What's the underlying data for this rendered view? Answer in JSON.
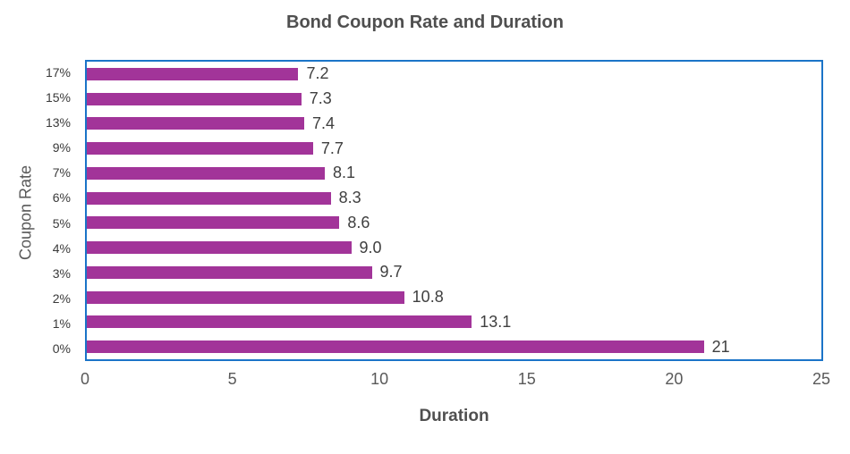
{
  "chart_data": {
    "type": "bar",
    "orientation": "horizontal",
    "title": "Bond Coupon Rate and Duration",
    "xlabel": "Duration",
    "ylabel": "Coupon Rate",
    "categories": [
      "17%",
      "15%",
      "13%",
      "9%",
      "7%",
      "6%",
      "5%",
      "4%",
      "3%",
      "2%",
      "1%",
      "0%"
    ],
    "values": [
      7.2,
      7.3,
      7.4,
      7.7,
      8.1,
      8.3,
      8.6,
      9.0,
      9.7,
      10.8,
      13.1,
      21
    ],
    "value_labels": [
      "7.2",
      "7.3",
      "7.4",
      "7.7",
      "8.1",
      "8.3",
      "8.6",
      "9.0",
      "9.7",
      "10.8",
      "13.1",
      "21"
    ],
    "xlim": [
      0,
      25
    ],
    "x_ticks": [
      "0",
      "5",
      "10",
      "15",
      "20",
      "25"
    ],
    "grid": false,
    "legend": "none",
    "bar_color": "#a23499",
    "plot_border_color": "#1b74c8",
    "title_color": "#4f4f4f",
    "tick_color": "#595959"
  }
}
